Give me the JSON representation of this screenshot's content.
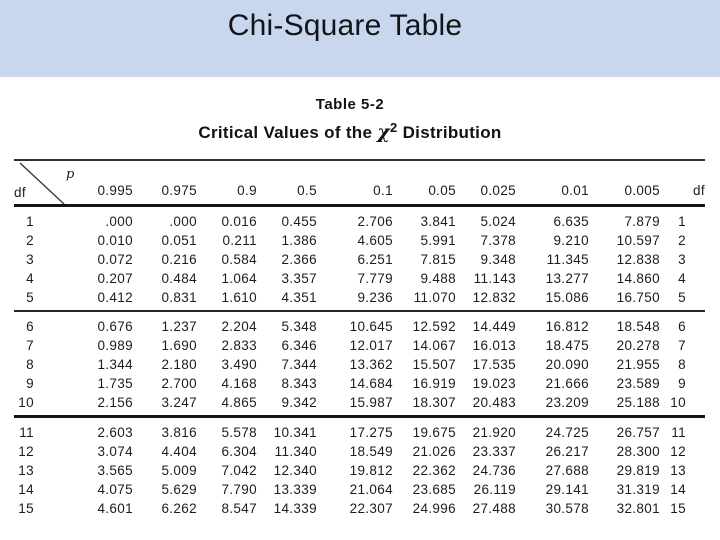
{
  "slide": {
    "title": "Chi-Square Table"
  },
  "colors": {
    "banner_blue": "#c8d7ee",
    "table_ink": "#1c1c1c"
  },
  "table": {
    "caption_line1": "Table 5-2",
    "caption_line2_prefix": "Critical Values of the ",
    "caption_chi": "χ",
    "caption_sup": "2",
    "caption_line2_suffix": " Distribution",
    "corner": {
      "row_label": "df",
      "col_label": "p"
    },
    "headers": [
      "0.995",
      "0.975",
      "0.9",
      "0.5",
      "0.1",
      "0.05",
      "0.025",
      "0.01",
      "0.005"
    ],
    "trailing_header": "df",
    "row_groups": [
      {
        "rows": [
          [
            "1",
            ".000",
            ".000",
            "0.016",
            "0.455",
            "2.706",
            "3.841",
            "5.024",
            "6.635",
            "7.879",
            "1"
          ],
          [
            "2",
            "0.010",
            "0.051",
            "0.211",
            "1.386",
            "4.605",
            "5.991",
            "7.378",
            "9.210",
            "10.597",
            "2"
          ],
          [
            "3",
            "0.072",
            "0.216",
            "0.584",
            "2.366",
            "6.251",
            "7.815",
            "9.348",
            "11.345",
            "12.838",
            "3"
          ],
          [
            "4",
            "0.207",
            "0.484",
            "1.064",
            "3.357",
            "7.779",
            "9.488",
            "11.143",
            "13.277",
            "14.860",
            "4"
          ],
          [
            "5",
            "0.412",
            "0.831",
            "1.610",
            "4.351",
            "9.236",
            "11.070",
            "12.832",
            "15.086",
            "16.750",
            "5"
          ]
        ]
      },
      {
        "rows": [
          [
            "6",
            "0.676",
            "1.237",
            "2.204",
            "5.348",
            "10.645",
            "12.592",
            "14.449",
            "16.812",
            "18.548",
            "6"
          ],
          [
            "7",
            "0.989",
            "1.690",
            "2.833",
            "6.346",
            "12.017",
            "14.067",
            "16.013",
            "18.475",
            "20.278",
            "7"
          ],
          [
            "8",
            "1.344",
            "2.180",
            "3.490",
            "7.344",
            "13.362",
            "15.507",
            "17.535",
            "20.090",
            "21.955",
            "8"
          ],
          [
            "9",
            "1.735",
            "2.700",
            "4.168",
            "8.343",
            "14.684",
            "16.919",
            "19.023",
            "21.666",
            "23.589",
            "9"
          ],
          [
            "10",
            "2.156",
            "3.247",
            "4.865",
            "9.342",
            "15.987",
            "18.307",
            "20.483",
            "23.209",
            "25.188",
            "10"
          ]
        ]
      },
      {
        "rows": [
          [
            "11",
            "2.603",
            "3.816",
            "5.578",
            "10.341",
            "17.275",
            "19.675",
            "21.920",
            "24.725",
            "26.757",
            "11"
          ],
          [
            "12",
            "3.074",
            "4.404",
            "6.304",
            "11.340",
            "18.549",
            "21.026",
            "23.337",
            "26.217",
            "28.300",
            "12"
          ],
          [
            "13",
            "3.565",
            "5.009",
            "7.042",
            "12.340",
            "19.812",
            "22.362",
            "24.736",
            "27.688",
            "29.819",
            "13"
          ],
          [
            "14",
            "4.075",
            "5.629",
            "7.790",
            "13.339",
            "21.064",
            "23.685",
            "26.119",
            "29.141",
            "31.319",
            "14"
          ],
          [
            "15",
            "4.601",
            "6.262",
            "8.547",
            "14.339",
            "22.307",
            "24.996",
            "27.488",
            "30.578",
            "32.801",
            "15"
          ]
        ]
      }
    ]
  }
}
